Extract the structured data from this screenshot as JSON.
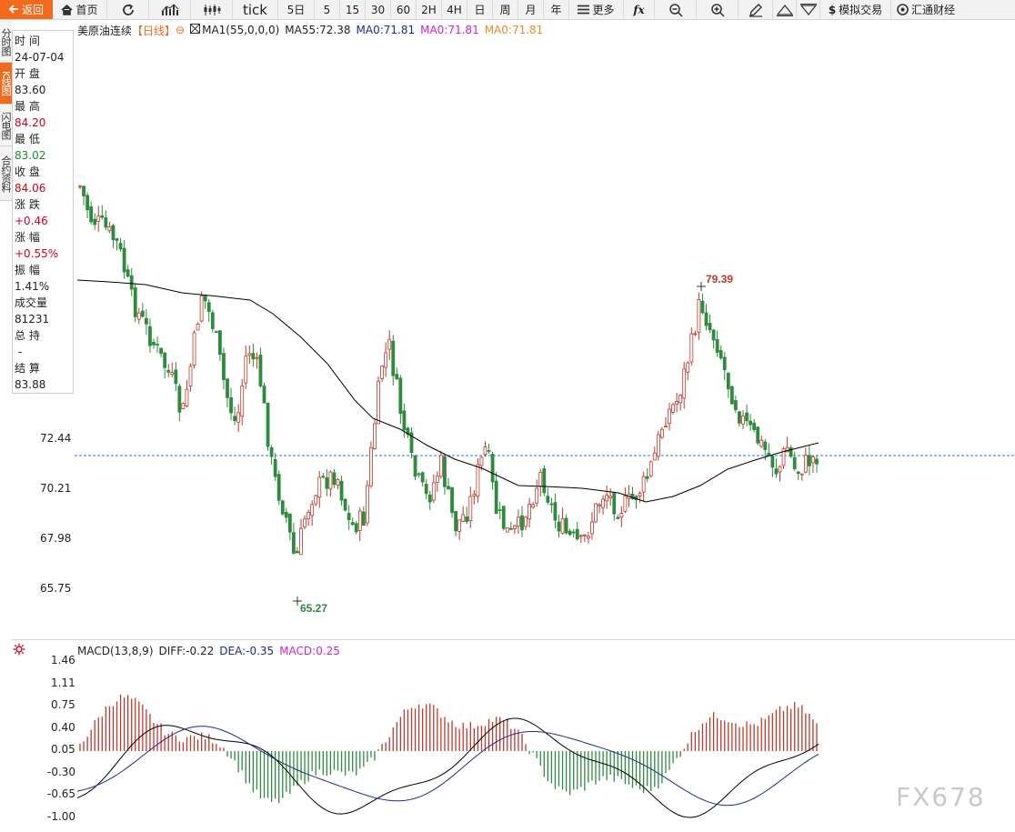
{
  "toolbar": {
    "back": "返回",
    "home": "首页",
    "tick": "tick",
    "periods": [
      "5日",
      "5",
      "15",
      "30",
      "60",
      "2H",
      "4H",
      "日",
      "周",
      "月",
      "年"
    ],
    "more": "更多",
    "fx": "fx",
    "sim_trade": "模拟交易",
    "huitong": "汇通财经"
  },
  "vtabs": [
    "分时图",
    "K线图",
    "闪电图",
    "合约资料"
  ],
  "info": {
    "time_label": "时 间",
    "time": "24-07-04",
    "open_label": "开 盘",
    "open": "83.60",
    "high_label": "最 高",
    "high": "84.20",
    "low_label": "最 低",
    "low": "83.02",
    "close_label": "收 盘",
    "close": "84.06",
    "change_label": "涨 跌",
    "change": "+0.46",
    "pct_label": "涨 幅",
    "pct": "+0.55%",
    "amp_label": "振 幅",
    "amp": "1.41%",
    "vol_label": "成交量",
    "vol": "81231",
    "oi_label": "总 持",
    "oi": "-",
    "settle_label": "结 算",
    "settle": "83.88"
  },
  "legend": {
    "name": "美原油连续",
    "period": "【日线】",
    "ma1": "MA1(55,0,0,0)",
    "ma55": "MA55:72.38",
    "ma0a": "MA0:71.81",
    "ma0b": "MA0:71.81",
    "ma0c": "MA0:71.81"
  },
  "yaxis": [
    "72.44",
    "70.21",
    "67.98",
    "65.75"
  ],
  "annotations": {
    "high": "79.39",
    "low": "65.27"
  },
  "macd_legend": {
    "title": "MACD(13,8,9)",
    "diff": "DIFF:-0.22",
    "dea": "DEA:-0.35",
    "macd": "MACD:0.25"
  },
  "macd_yaxis": [
    "1.46",
    "1.11",
    "0.75",
    "0.40",
    "0.05",
    "-0.30",
    "-0.65",
    "-1.00"
  ],
  "watermark": "FX678",
  "colors": {
    "up": "#c0392b",
    "down": "#2e8b3e",
    "orange": "#f26b1d",
    "ma": "#000000",
    "dea": "#1e2b8a",
    "refline": "#2a7fd4"
  }
}
